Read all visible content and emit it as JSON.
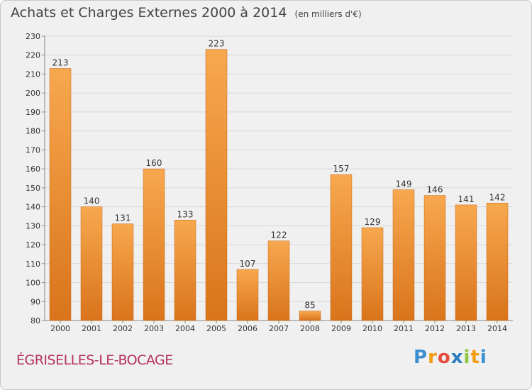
{
  "title": "Achats et Charges Externes 2000 à 2014",
  "unit": "(en milliers d'€)",
  "city": "ÉGRISELLES-LE-BOCAGE",
  "logo": {
    "letters": [
      "P",
      "r",
      "o",
      "x",
      "i",
      "t",
      "i"
    ],
    "colors": [
      "#3a8fd1",
      "#f39c12",
      "#e74c3c",
      "#2c7dbf",
      "#8dc63f",
      "#f39c12",
      "#3a8fd1"
    ]
  },
  "colors": {
    "bar_light": "#f7a84e",
    "bar_dark": "#d9741c",
    "grid": "#d8d8d8",
    "text": "#333333"
  },
  "chart_data": {
    "type": "bar",
    "categories": [
      "2000",
      "2001",
      "2002",
      "2003",
      "2004",
      "2005",
      "2006",
      "2007",
      "2008",
      "2009",
      "2010",
      "2011",
      "2012",
      "2013",
      "2014"
    ],
    "values": [
      213,
      140,
      131,
      160,
      133,
      223,
      107,
      122,
      85,
      157,
      129,
      149,
      146,
      141,
      142
    ],
    "ylim": [
      80,
      230
    ],
    "yticks": [
      80,
      90,
      100,
      110,
      120,
      130,
      140,
      150,
      160,
      170,
      180,
      190,
      200,
      210,
      220,
      230
    ],
    "grid": true,
    "xlabel": "",
    "ylabel": ""
  }
}
